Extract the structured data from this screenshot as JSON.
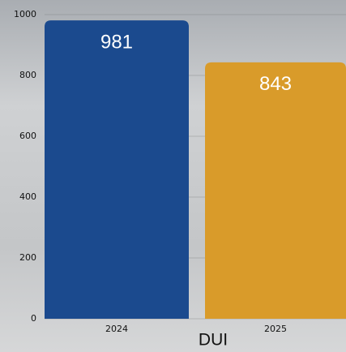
{
  "chart_data": {
    "type": "bar",
    "x_label": "DUI",
    "categories": [
      "2024",
      "2025"
    ],
    "values": [
      981,
      843
    ],
    "colors": [
      "#1b4a8e",
      "#d99b2a"
    ],
    "ylim": [
      0,
      1000
    ],
    "yticks": [
      0,
      200,
      400,
      600,
      800,
      1000
    ],
    "grid": true
  }
}
